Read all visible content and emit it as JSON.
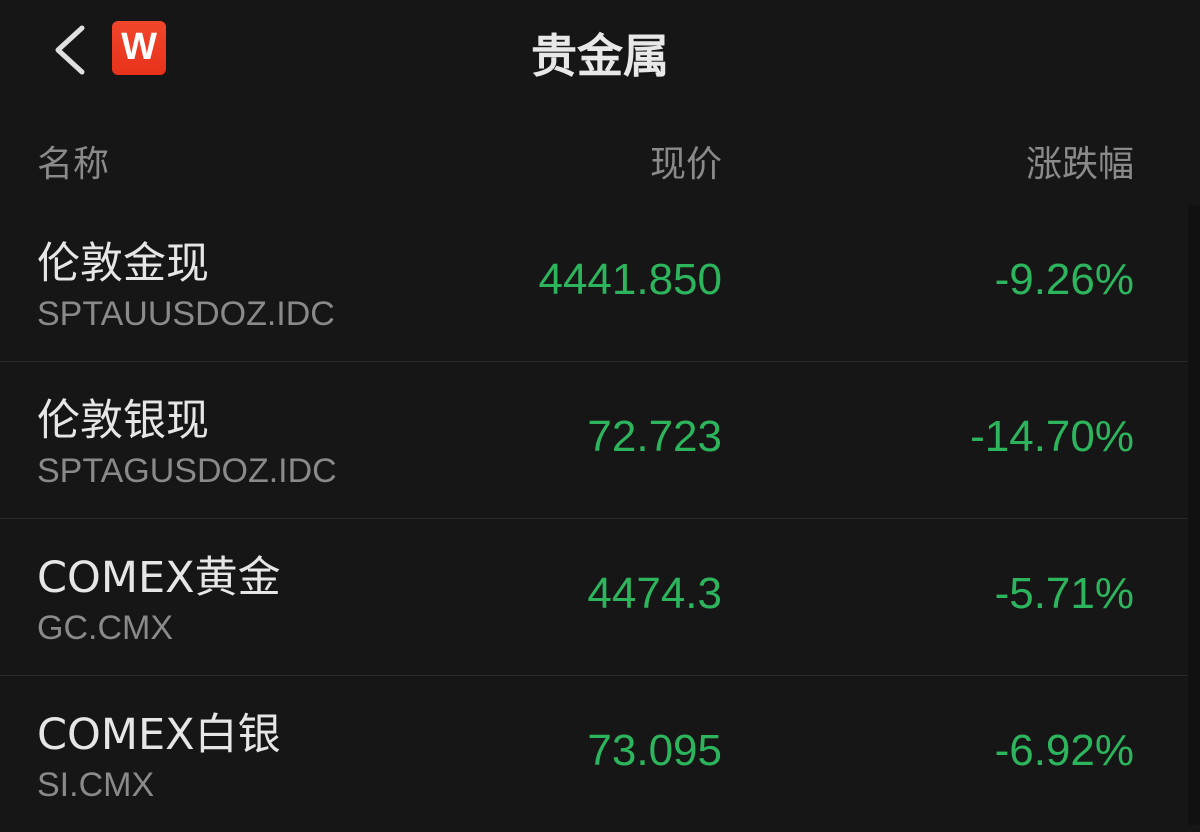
{
  "header": {
    "title": "贵金属",
    "logo_text": "W",
    "back_icon": "chevron-left-icon"
  },
  "columns": {
    "name": "名称",
    "price": "现价",
    "change": "涨跌幅"
  },
  "colors": {
    "background": "#161616",
    "down": "#2db55d",
    "logo": "#e8321c"
  },
  "rows": [
    {
      "name": "伦敦金现",
      "code": "SPTAUUSDOZ.IDC",
      "price": "4441.850",
      "change": "-9.26%"
    },
    {
      "name": "伦敦银现",
      "code": "SPTAGUSDOZ.IDC",
      "price": "72.723",
      "change": "-14.70%"
    },
    {
      "name": "COMEX黄金",
      "code": "GC.CMX",
      "price": "4474.3",
      "change": "-5.71%"
    },
    {
      "name": "COMEX白银",
      "code": "SI.CMX",
      "price": "73.095",
      "change": "-6.92%"
    }
  ]
}
